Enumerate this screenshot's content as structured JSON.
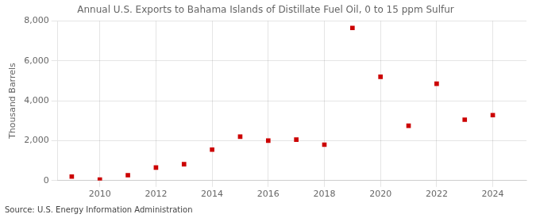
{
  "chart_data": {
    "type": "scatter",
    "title": "Annual U.S. Exports to Bahama Islands of Distillate Fuel Oil, 0 to 15 ppm Sulfur",
    "ylabel": "Thousand Barrels",
    "annotations": [
      "Source: U.S. Energy Information Administration"
    ],
    "x": [
      2009,
      2010,
      2011,
      2012,
      2013,
      2014,
      2015,
      2016,
      2017,
      2018,
      2019,
      2020,
      2021,
      2022,
      2023,
      2024
    ],
    "values": [
      200,
      50,
      270,
      650,
      820,
      1550,
      2200,
      2000,
      2050,
      1800,
      7650,
      5200,
      2750,
      4850,
      3050,
      3280
    ],
    "color": "#cc0000",
    "marker": "square",
    "xlim": [
      2008.5,
      2025.2
    ],
    "xticks": [
      2010,
      2012,
      2014,
      2016,
      2018,
      2020,
      2022,
      2024
    ],
    "ylim": [
      0,
      8000
    ],
    "yticks": [
      0,
      {
        "value": 2000,
        "label": "2,000"
      },
      {
        "value": 4000,
        "label": "4,000"
      },
      {
        "value": 6000,
        "label": "6,000"
      },
      {
        "value": 8000,
        "label": "8,000"
      }
    ],
    "grid": true
  }
}
